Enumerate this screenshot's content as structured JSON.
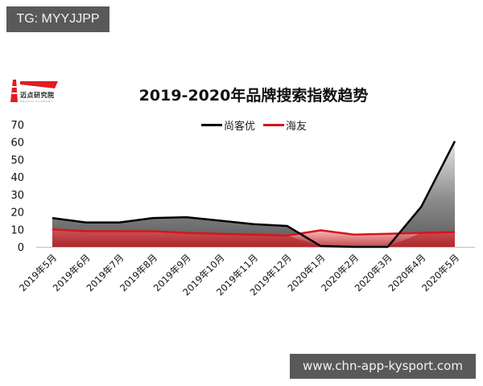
{
  "badge": {
    "text": "TG: MYYJJPP"
  },
  "watermark": {
    "text": "www.chn-app-kysport.com"
  },
  "logo": {
    "name": "迈点研究院",
    "sub": "MEADIN ACADEMY",
    "icon": "lighthouse-flag-icon"
  },
  "colors": {
    "series1": "#000000",
    "series2": "#d9141c",
    "badge_bg": "#595959",
    "axis": "#bfbfbf"
  },
  "chart_data": {
    "type": "area",
    "title": "2019-2020年品牌搜索指数趋势",
    "xlabel": "",
    "ylabel": "",
    "ylim": [
      0,
      70
    ],
    "yticks": [
      0,
      10,
      20,
      30,
      40,
      50,
      60,
      70
    ],
    "grid": false,
    "legend_position": "top",
    "categories": [
      "2019年5月",
      "2019年6月",
      "2019年7月",
      "2019年8月",
      "2019年9月",
      "2019年10月",
      "2019年11月",
      "2019年12月",
      "2020年1月",
      "2020年2月",
      "2020年3月",
      "2020年4月",
      "2020年5月"
    ],
    "series": [
      {
        "name": "尚客优",
        "color": "#000000",
        "values": [
          16.5,
          14,
          14,
          16.5,
          17,
          15,
          13,
          12,
          0.5,
          0,
          0,
          23,
          60.5
        ]
      },
      {
        "name": "海友",
        "color": "#d9141c",
        "values": [
          10,
          9,
          9,
          9,
          8,
          7.5,
          7,
          6.5,
          9.5,
          7,
          7.5,
          8,
          8.5
        ]
      }
    ]
  }
}
